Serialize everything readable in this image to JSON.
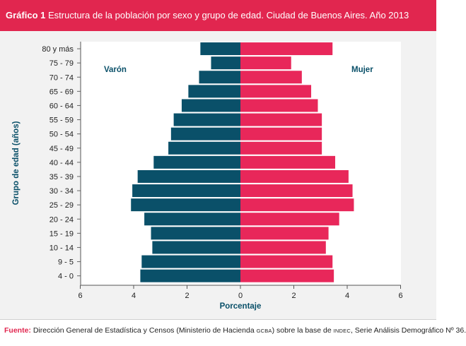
{
  "header": {
    "label": "Gráfico 1",
    "title": "Estructura de la población por sexo y grupo de edad. Ciudad de Buenos Aires. Año 2013"
  },
  "footer": {
    "label": "Fuente:",
    "text_a": "Dirección General de Estadística y Censos (Ministerio de Hacienda ",
    "sc_a": "GCBA",
    "text_b": ") sobre la base de ",
    "sc_b": "INDEC",
    "text_c": ", Serie Análisis Demográfico Nº 36."
  },
  "colors": {
    "male": "#0a5069",
    "female": "#e8275a",
    "accent": "#e1264f"
  },
  "chart_data": {
    "type": "bar",
    "orientation": "horizontal-pyramid",
    "xlabel": "Porcentaje",
    "ylabel": "Grupo de edad (años)",
    "xlim": [
      -6,
      6
    ],
    "xticks": [
      -6,
      -4,
      -2,
      0,
      2,
      4,
      6
    ],
    "xtick_labels": [
      "6",
      "4",
      "2",
      "0",
      "2",
      "4",
      "6"
    ],
    "grid": false,
    "categories": [
      "80 y más",
      "75 - 79",
      "70 - 74",
      "65 - 69",
      "60 - 64",
      "55 - 59",
      "50 - 54",
      "45 - 49",
      "40 - 44",
      "35 - 39",
      "30 - 34",
      "25 - 29",
      "20 - 24",
      "15 - 19",
      "10 - 14",
      "9 - 5",
      "4 - 0"
    ],
    "series": [
      {
        "name": "Varón",
        "values": [
          1.5,
          1.1,
          1.55,
          1.95,
          2.2,
          2.5,
          2.6,
          2.7,
          3.25,
          3.85,
          4.05,
          4.1,
          3.6,
          3.35,
          3.3,
          3.7,
          3.75
        ]
      },
      {
        "name": "Mujer",
        "values": [
          3.45,
          1.9,
          2.3,
          2.65,
          2.9,
          3.05,
          3.05,
          3.05,
          3.55,
          4.05,
          4.2,
          4.25,
          3.7,
          3.3,
          3.2,
          3.45,
          3.5
        ]
      }
    ]
  }
}
